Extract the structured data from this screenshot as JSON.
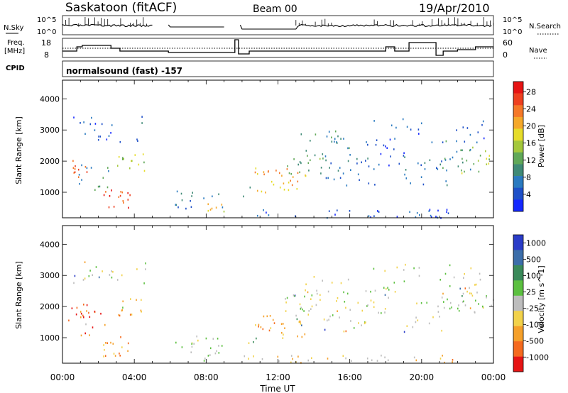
{
  "header": {
    "station": "Saskatoon (fitACF)",
    "beam": "Beam 00",
    "date": "19/Apr/2010"
  },
  "strips": {
    "nsky_label": "N.Sky",
    "nsky_ticks": [
      "10^5",
      "10^0"
    ],
    "nsearch_label": "N.Search",
    "nsearch_ticks": [
      "10^5",
      "10^0"
    ],
    "freq_label_1": "Freq.",
    "freq_label_2": "[MHz]",
    "freq_ticks": [
      "18",
      "8"
    ],
    "nave_label": "Nave",
    "nave_ticks": [
      "60",
      "0"
    ],
    "cpid_label": "CPID",
    "cpid_text": "normalsound (fast) -157"
  },
  "chart_data": [
    {
      "type": "heatmap",
      "ylabel": "Slant Range [km]",
      "xlabel": "Time UT",
      "x_tick_labels": [
        "00:00",
        "04:00",
        "08:00",
        "12:00",
        "16:00",
        "20:00",
        "00:00"
      ],
      "y_tick_labels": [
        "1000",
        "2000",
        "3000",
        "4000"
      ],
      "xlim_hours": [
        0,
        24
      ],
      "ylim_km": [
        180,
        4600
      ],
      "colorbar": {
        "label": "Power [dB]",
        "tick_labels": [
          "4",
          "8",
          "12",
          "16",
          "20",
          "24",
          "28"
        ],
        "colors": [
          "#1428ff",
          "#1e50c8",
          "#2a7ac0",
          "#3f8a76",
          "#60a858",
          "#a4c83c",
          "#e6dc2a",
          "#f5a82a",
          "#f57828",
          "#ee4020",
          "#e61414"
        ]
      }
    },
    {
      "type": "heatmap",
      "ylabel": "Slant Range [km]",
      "xlabel": "Time UT",
      "x_tick_labels": [
        "00:00",
        "04:00",
        "08:00",
        "12:00",
        "16:00",
        "20:00",
        "00:00"
      ],
      "y_tick_labels": [
        "1000",
        "2000",
        "3000",
        "4000"
      ],
      "xlim_hours": [
        0,
        24
      ],
      "ylim_km": [
        180,
        4600
      ],
      "colorbar": {
        "label": "Velocity [m s^-1]",
        "tick_labels": [
          "1000",
          "500",
          "100",
          "25",
          "-25",
          "-100",
          "-500",
          "-1000"
        ],
        "colors": [
          "#2a3cc8",
          "#3c6eaa",
          "#3a8a5a",
          "#5cc040",
          "#bdbdbd",
          "#f2d24a",
          "#f5a02a",
          "#f56a1e",
          "#e61414"
        ]
      }
    }
  ]
}
